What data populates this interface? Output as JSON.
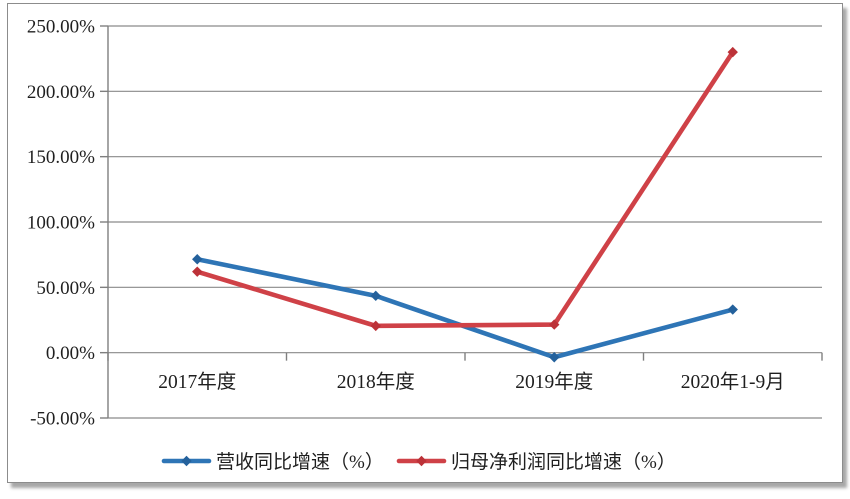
{
  "chart_data": {
    "type": "line",
    "title": "",
    "categories": [
      "2017年度",
      "2018年度",
      "2019年度",
      "2020年1-9月"
    ],
    "y_ticks": [
      250,
      200,
      150,
      100,
      50,
      0,
      -50
    ],
    "y_tick_labels": [
      "250.00%",
      "200.00%",
      "150.00%",
      "100.00%",
      "50.00%",
      "0.00%",
      "-50.00%"
    ],
    "ylim": [
      -50,
      250
    ],
    "grid": true,
    "legend_position": "bottom",
    "series": [
      {
        "name": "营收同比增速（%）",
        "color": "#2E75B6",
        "marker_color": "#24619C",
        "values": [
          71.5,
          43.5,
          -3.5,
          33
        ]
      },
      {
        "name": "归母净利润同比增速（%）",
        "color": "#CF4147",
        "marker_color": "#BC3238",
        "values": [
          62,
          20.5,
          21.5,
          230
        ]
      }
    ]
  },
  "style_colors": {
    "grid": "#8A8A8A",
    "axis": "#7F7F7F",
    "frame_border": "#8C8C8C",
    "text": "#1F1F1F",
    "background": "#FFFFFF"
  }
}
